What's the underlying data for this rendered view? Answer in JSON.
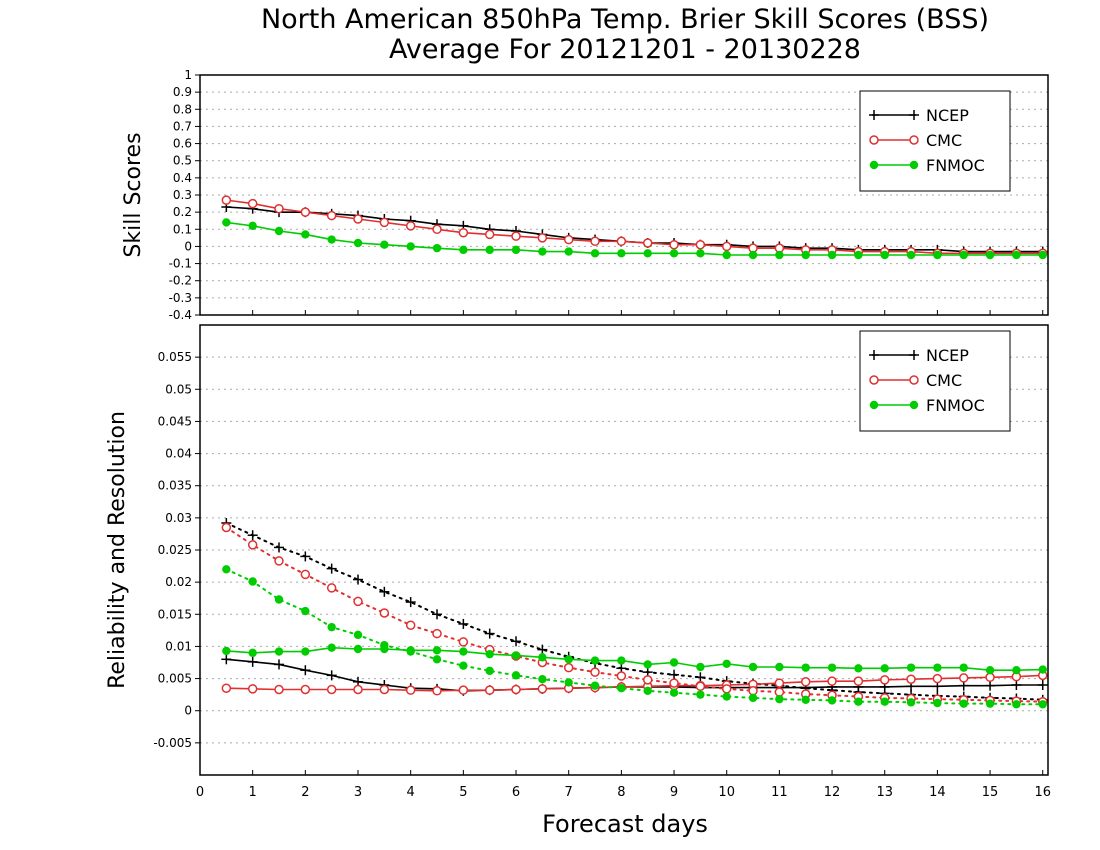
{
  "title_line1": "North American 850hPa Temp. Brier Skill Scores (BSS)",
  "title_line2": "Average For 20121201 - 20130228",
  "xlabel": "Forecast days",
  "xticks": [
    "0",
    "1",
    "2",
    "3",
    "4",
    "5",
    "6",
    "7",
    "8",
    "9",
    "10",
    "11",
    "12",
    "13",
    "14",
    "15",
    "16"
  ],
  "colors": {
    "NCEP": "#000000",
    "CMC": "#e03030",
    "FNMOC": "#00cc00"
  },
  "chart_data": [
    {
      "type": "line",
      "ylabel": "Skill Scores",
      "ylim": [
        -0.4,
        1
      ],
      "yticks": [
        "1",
        "0.9",
        "0.8",
        "0.7",
        "0.6",
        "0.5",
        "0.4",
        "0.3",
        "0.2",
        "0.1",
        "0",
        "-0.1",
        "-0.2",
        "-0.3",
        "-0.4"
      ],
      "xlim": [
        0,
        16.1
      ],
      "grid": true,
      "legend": "top-right",
      "x": [
        0.5,
        1,
        1.5,
        2,
        2.5,
        3,
        3.5,
        4,
        4.5,
        5,
        5.5,
        6,
        6.5,
        7,
        7.5,
        8,
        8.5,
        9,
        9.5,
        10,
        10.5,
        11,
        11.5,
        12,
        12.5,
        13,
        13.5,
        14,
        14.5,
        15,
        15.5,
        16
      ],
      "series": [
        {
          "name": "NCEP",
          "marker": "plus",
          "values": [
            0.23,
            0.22,
            0.2,
            0.2,
            0.19,
            0.18,
            0.16,
            0.15,
            0.13,
            0.12,
            0.1,
            0.09,
            0.07,
            0.05,
            0.04,
            0.03,
            0.02,
            0.02,
            0.01,
            0.01,
            0.0,
            0.0,
            -0.01,
            -0.01,
            -0.02,
            -0.02,
            -0.02,
            -0.02,
            -0.03,
            -0.03,
            -0.03,
            -0.03
          ]
        },
        {
          "name": "CMC",
          "marker": "open-circle",
          "values": [
            0.27,
            0.25,
            0.22,
            0.2,
            0.18,
            0.16,
            0.14,
            0.12,
            0.1,
            0.08,
            0.07,
            0.06,
            0.05,
            0.04,
            0.03,
            0.03,
            0.02,
            0.01,
            0.01,
            0.0,
            -0.01,
            -0.01,
            -0.02,
            -0.02,
            -0.03,
            -0.03,
            -0.03,
            -0.04,
            -0.04,
            -0.04,
            -0.04,
            -0.04
          ]
        },
        {
          "name": "FNMOC",
          "marker": "filled-circle",
          "values": [
            0.14,
            0.12,
            0.09,
            0.07,
            0.04,
            0.02,
            0.01,
            0.0,
            -0.01,
            -0.02,
            -0.02,
            -0.02,
            -0.03,
            -0.03,
            -0.04,
            -0.04,
            -0.04,
            -0.04,
            -0.04,
            -0.05,
            -0.05,
            -0.05,
            -0.05,
            -0.05,
            -0.05,
            -0.05,
            -0.05,
            -0.05,
            -0.05,
            -0.05,
            -0.05,
            -0.05
          ]
        }
      ]
    },
    {
      "type": "line",
      "ylabel": "Reliability and Resolution",
      "ylim": [
        -0.01,
        0.06
      ],
      "yticks": [
        "0.055",
        "0.05",
        "0.045",
        "0.04",
        "0.035",
        "0.03",
        "0.025",
        "0.02",
        "0.015",
        "0.01",
        "0.005",
        "0",
        "-0.005"
      ],
      "xlim": [
        0,
        16.1
      ],
      "grid": true,
      "legend": "top-right",
      "x": [
        0.5,
        1,
        1.5,
        2,
        2.5,
        3,
        3.5,
        4,
        4.5,
        5,
        5.5,
        6,
        6.5,
        7,
        7.5,
        8,
        8.5,
        9,
        9.5,
        10,
        10.5,
        11,
        11.5,
        12,
        12.5,
        13,
        13.5,
        14,
        14.5,
        15,
        15.5,
        16
      ],
      "series": [
        {
          "name": "NCEP",
          "marker": "plus",
          "line": "solid",
          "values": [
            0.008,
            0.0076,
            0.0072,
            0.0063,
            0.0055,
            0.0045,
            0.004,
            0.0035,
            0.0034,
            0.0031,
            0.0032,
            0.0033,
            0.0034,
            0.0035,
            0.0036,
            0.0037,
            0.0037,
            0.0037,
            0.0036,
            0.0036,
            0.0036,
            0.0036,
            0.0036,
            0.0037,
            0.0037,
            0.0037,
            0.0038,
            0.0038,
            0.0039,
            0.0039,
            0.004,
            0.004
          ]
        },
        {
          "name": "NCEP",
          "marker": "plus",
          "line": "dotted",
          "values": [
            0.0292,
            0.0273,
            0.0254,
            0.024,
            0.0221,
            0.0204,
            0.0185,
            0.0169,
            0.015,
            0.0135,
            0.012,
            0.0108,
            0.0095,
            0.0084,
            0.0074,
            0.0066,
            0.006,
            0.0056,
            0.0052,
            0.0046,
            0.0042,
            0.0039,
            0.0035,
            0.0032,
            0.0029,
            0.0027,
            0.0025,
            0.0023,
            0.0022,
            0.002,
            0.0019,
            0.0017
          ]
        },
        {
          "name": "CMC",
          "marker": "open-circle",
          "line": "solid",
          "values": [
            0.0035,
            0.0034,
            0.0033,
            0.0033,
            0.0033,
            0.0033,
            0.0033,
            0.0032,
            0.0031,
            0.0032,
            0.0032,
            0.0033,
            0.0034,
            0.0035,
            0.0036,
            0.0037,
            0.0038,
            0.0039,
            0.0039,
            0.004,
            0.0041,
            0.0043,
            0.0045,
            0.0046,
            0.0046,
            0.0048,
            0.0049,
            0.005,
            0.0051,
            0.0052,
            0.0053,
            0.0055
          ]
        },
        {
          "name": "CMC",
          "marker": "open-circle",
          "line": "dotted",
          "values": [
            0.0285,
            0.0258,
            0.0233,
            0.0212,
            0.0191,
            0.017,
            0.0152,
            0.0133,
            0.012,
            0.0107,
            0.0095,
            0.0085,
            0.0075,
            0.0067,
            0.006,
            0.0054,
            0.0048,
            0.0043,
            0.0038,
            0.0034,
            0.0031,
            0.0029,
            0.0026,
            0.0024,
            0.0022,
            0.002,
            0.0019,
            0.0018,
            0.0017,
            0.0016,
            0.0015,
            0.0014
          ]
        },
        {
          "name": "FNMOC",
          "marker": "filled-circle",
          "line": "solid",
          "values": [
            0.0093,
            0.009,
            0.0092,
            0.0092,
            0.0098,
            0.0096,
            0.0096,
            0.0094,
            0.0094,
            0.0092,
            0.0088,
            0.0086,
            0.0083,
            0.008,
            0.0078,
            0.0078,
            0.0072,
            0.0075,
            0.0068,
            0.0073,
            0.0068,
            0.0068,
            0.0067,
            0.0067,
            0.0066,
            0.0066,
            0.0067,
            0.0067,
            0.0067,
            0.0063,
            0.0063,
            0.0064
          ]
        },
        {
          "name": "FNMOC",
          "marker": "filled-circle",
          "line": "dotted",
          "values": [
            0.022,
            0.0201,
            0.0173,
            0.0155,
            0.013,
            0.0118,
            0.0102,
            0.0092,
            0.008,
            0.007,
            0.0062,
            0.0055,
            0.0049,
            0.0044,
            0.0039,
            0.0035,
            0.0031,
            0.0028,
            0.0025,
            0.0022,
            0.002,
            0.0018,
            0.0017,
            0.0016,
            0.0014,
            0.0014,
            0.0013,
            0.0012,
            0.0011,
            0.0011,
            0.001,
            0.001
          ]
        }
      ]
    }
  ]
}
